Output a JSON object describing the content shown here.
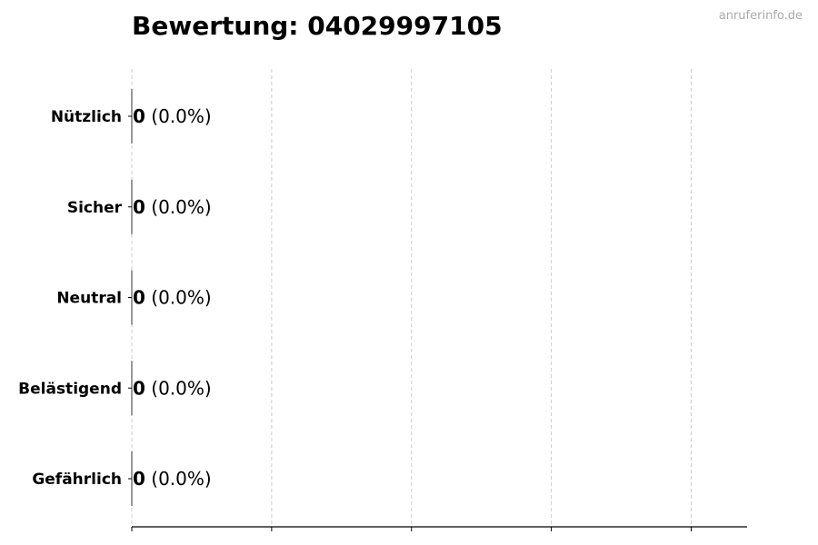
{
  "watermark": "anruferinfo.de",
  "chart_data": {
    "type": "bar",
    "orientation": "horizontal",
    "title": "Bewertung: 04029997105",
    "categories": [
      "Nützlich",
      "Sicher",
      "Neutral",
      "Belästigend",
      "Gefährlich"
    ],
    "values": [
      0,
      0,
      0,
      0,
      0
    ],
    "data_labels": [
      {
        "count": "0",
        "percent": "(0.0%)"
      },
      {
        "count": "0",
        "percent": "(0.0%)"
      },
      {
        "count": "0",
        "percent": "(0.0%)"
      },
      {
        "count": "0",
        "percent": "(0.0%)"
      },
      {
        "count": "0",
        "percent": "(0.0%)"
      }
    ],
    "xlim": [
      0,
      4.4
    ],
    "xticks": [
      0,
      1,
      2,
      3,
      4
    ],
    "xtick_labels_shown": false,
    "grid": "vertical dashed",
    "xlabel": "",
    "ylabel": ""
  }
}
